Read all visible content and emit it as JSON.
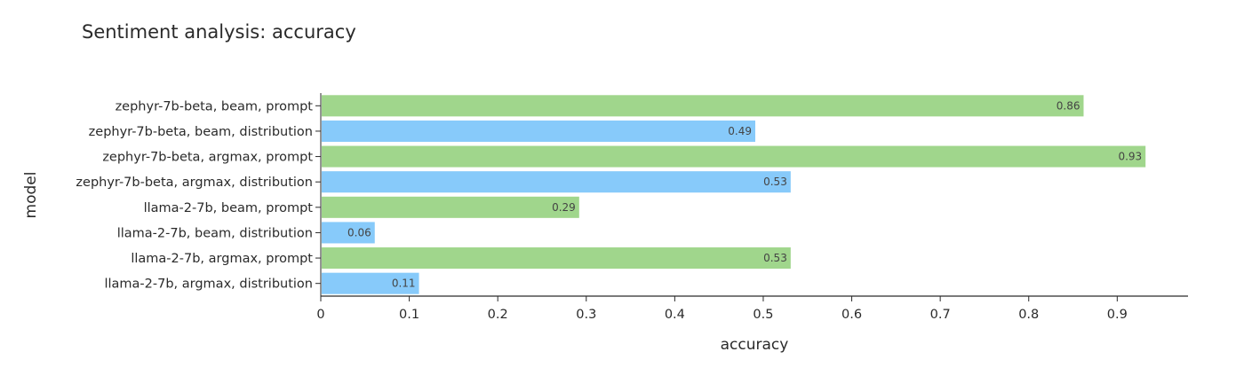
{
  "chart_data": {
    "type": "bar",
    "orientation": "horizontal",
    "title": "Sentiment analysis: accuracy",
    "xlabel": "accuracy",
    "ylabel": "model",
    "xlim": [
      0,
      0.98
    ],
    "x_ticks": [
      0,
      0.1,
      0.2,
      0.3,
      0.4,
      0.5,
      0.6,
      0.7,
      0.8,
      0.9
    ],
    "x_tick_labels": [
      "0",
      "0.1",
      "0.2",
      "0.3",
      "0.4",
      "0.5",
      "0.6",
      "0.7",
      "0.8",
      "0.9"
    ],
    "grid": false,
    "legend": "none",
    "categories": [
      "zephyr-7b-beta, beam, prompt",
      "zephyr-7b-beta, beam, distribution",
      "zephyr-7b-beta, argmax, prompt",
      "zephyr-7b-beta, argmax, distribution",
      "llama-2-7b, beam, prompt",
      "llama-2-7b, beam, distribution",
      "llama-2-7b, argmax, prompt",
      "llama-2-7b, argmax, distribution"
    ],
    "values": [
      0.862,
      0.491,
      0.932,
      0.531,
      0.292,
      0.061,
      0.531,
      0.111
    ],
    "data_labels": [
      "0.86",
      "0.49",
      "0.93",
      "0.53",
      "0.29",
      "0.06",
      "0.53",
      "0.11"
    ],
    "colors": [
      "#a0d68c",
      "#87cafa",
      "#a0d68c",
      "#87cafa",
      "#a0d68c",
      "#87cafa",
      "#a0d68c",
      "#87cafa"
    ]
  }
}
